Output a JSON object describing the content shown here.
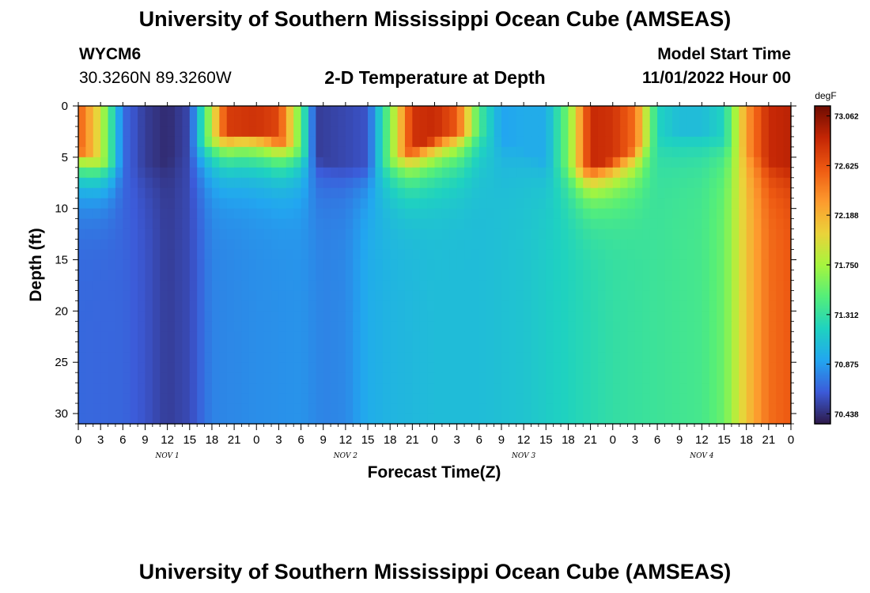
{
  "page": {
    "title_top": "University of Southern Mississippi Ocean Cube (AMSEAS)",
    "title_bottom": "University of Southern Mississippi Ocean Cube (AMSEAS)",
    "station_id": "WYCM6",
    "station_coords": "30.3260N  89.3260W",
    "chart_title": "2-D Temperature at Depth",
    "model_start_label": "Model Start Time",
    "model_start_value": "11/01/2022 Hour 00"
  },
  "chart_data": {
    "type": "heatmap",
    "title": "2-D Temperature at Depth",
    "xlabel": "Forecast Time(Z)",
    "ylabel": "Depth (ft)",
    "x_hours": [
      0,
      96
    ],
    "x_tick_step_hours": 3,
    "x_tick_labels": [
      "0",
      "3",
      "6",
      "9",
      "12",
      "15",
      "18",
      "21",
      "0",
      "3",
      "6",
      "9",
      "12",
      "15",
      "18",
      "21",
      "0",
      "3",
      "6",
      "9",
      "12",
      "15",
      "18",
      "21",
      "0",
      "3",
      "6",
      "9",
      "12",
      "15",
      "18",
      "21",
      "0"
    ],
    "day_labels": [
      {
        "label": "NOV 1",
        "hour": 12
      },
      {
        "label": "NOV 2",
        "hour": 36
      },
      {
        "label": "NOV 3",
        "hour": 60
      },
      {
        "label": "NOV 4",
        "hour": 84
      }
    ],
    "y_ticks": [
      "0",
      "5",
      "10",
      "15",
      "20",
      "25",
      "30"
    ],
    "ylim": [
      0,
      31
    ],
    "y_inverted": true,
    "colorbar": {
      "unit": "degF",
      "range": [
        70.35,
        73.15
      ],
      "tick_labels": [
        "73.062",
        "72.625",
        "72.188",
        "71.750",
        "71.312",
        "70.875",
        "70.438"
      ],
      "colors": [
        "#2e1a4a",
        "#3c5bd9",
        "#22a6f0",
        "#1fd2c0",
        "#54ee7a",
        "#a6f53e",
        "#ebd23a",
        "#fd9a2e",
        "#ee5a12",
        "#c42605",
        "#6e0c02"
      ]
    },
    "surface_temp_by_hour": [
      [
        0,
        72.6
      ],
      [
        3,
        71.9
      ],
      [
        6,
        70.7
      ],
      [
        9,
        70.5
      ],
      [
        12,
        70.42
      ],
      [
        15,
        70.55
      ],
      [
        17,
        71.4
      ],
      [
        20,
        72.75
      ],
      [
        24,
        72.8
      ],
      [
        27,
        72.7
      ],
      [
        30,
        71.5
      ],
      [
        32,
        70.5
      ],
      [
        36,
        70.55
      ],
      [
        39,
        70.6
      ],
      [
        42,
        71.6
      ],
      [
        45,
        72.8
      ],
      [
        48,
        72.85
      ],
      [
        51,
        72.6
      ],
      [
        54,
        71.4
      ],
      [
        57,
        70.9
      ],
      [
        60,
        70.95
      ],
      [
        63,
        70.95
      ],
      [
        66,
        71.6
      ],
      [
        69,
        72.85
      ],
      [
        72,
        72.8
      ],
      [
        75,
        72.5
      ],
      [
        78,
        71.2
      ],
      [
        81,
        71.05
      ],
      [
        84,
        71.05
      ],
      [
        87,
        71.2
      ],
      [
        90,
        72.3
      ],
      [
        93,
        72.85
      ],
      [
        96,
        72.9
      ]
    ],
    "bottom_temp_by_hour": [
      [
        0,
        70.68
      ],
      [
        6,
        70.67
      ],
      [
        9,
        70.6
      ],
      [
        12,
        70.5
      ],
      [
        15,
        70.56
      ],
      [
        18,
        70.78
      ],
      [
        24,
        70.82
      ],
      [
        30,
        70.84
      ],
      [
        33,
        70.78
      ],
      [
        36,
        70.8
      ],
      [
        39,
        70.95
      ],
      [
        42,
        71.0
      ],
      [
        48,
        71.05
      ],
      [
        54,
        71.05
      ],
      [
        60,
        71.1
      ],
      [
        66,
        71.2
      ],
      [
        72,
        71.3
      ],
      [
        78,
        71.35
      ],
      [
        84,
        71.4
      ],
      [
        87,
        71.55
      ],
      [
        90,
        72.1
      ],
      [
        93,
        72.5
      ],
      [
        96,
        72.6
      ]
    ]
  }
}
